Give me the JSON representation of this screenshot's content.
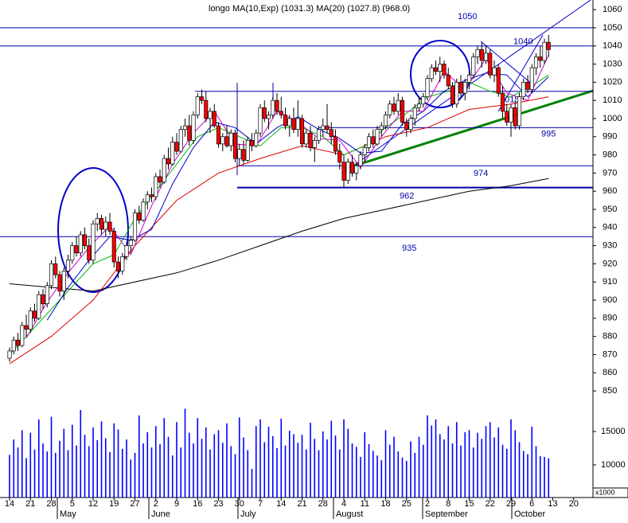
{
  "chart_data": {
    "type": "candlestick",
    "title": "longo",
    "subtitle": "MA(10,Exp) (1031.3) MA(20) (1027.8) (968.0)",
    "xlim": [
      -2.29,
      139.62
    ],
    "xticks": [
      {
        "value": 0,
        "label": "14"
      },
      {
        "value": 5,
        "label": "21"
      },
      {
        "value": 10,
        "label": "28"
      },
      {
        "value": 15,
        "label": "5"
      },
      {
        "value": 20,
        "label": "12"
      },
      {
        "value": 25,
        "label": "19"
      },
      {
        "value": 30,
        "label": "27"
      },
      {
        "value": 35,
        "label": "2"
      },
      {
        "value": 40,
        "label": "9"
      },
      {
        "value": 45,
        "label": "16"
      },
      {
        "value": 50,
        "label": "23"
      },
      {
        "value": 55,
        "label": "30"
      },
      {
        "value": 60,
        "label": "7"
      },
      {
        "value": 65,
        "label": "14"
      },
      {
        "value": 70,
        "label": "21"
      },
      {
        "value": 75,
        "label": "28"
      },
      {
        "value": 80,
        "label": "4"
      },
      {
        "value": 85,
        "label": "11"
      },
      {
        "value": 90,
        "label": "18"
      },
      {
        "value": 95,
        "label": "25"
      },
      {
        "value": 100,
        "label": "2"
      },
      {
        "value": 105,
        "label": "8"
      },
      {
        "value": 110,
        "label": "15"
      },
      {
        "value": 115,
        "label": "22"
      },
      {
        "value": 120,
        "label": "29"
      },
      {
        "value": 125,
        "label": "6"
      },
      {
        "value": 130,
        "label": "13"
      },
      {
        "value": 135,
        "label": "20"
      }
    ],
    "months": [
      "May",
      "June",
      "July",
      "August",
      "September",
      "October"
    ],
    "ylim": [
      841.7,
      1065.3
    ],
    "yticks": [
      850,
      860,
      870,
      880,
      890,
      900,
      910,
      920,
      930,
      940,
      950,
      960,
      970,
      980,
      990,
      1000,
      1010,
      1020,
      1030,
      1040,
      1050,
      1060
    ],
    "up_color": "#ffffff",
    "down_color": "#ff0000",
    "ohlc": [
      [
        868,
        874,
        866,
        872
      ],
      [
        872,
        880,
        870,
        878
      ],
      [
        878,
        882,
        872,
        875
      ],
      [
        875,
        888,
        874,
        886
      ],
      [
        886,
        892,
        880,
        884
      ],
      [
        884,
        896,
        882,
        894
      ],
      [
        894,
        898,
        888,
        890
      ],
      [
        890,
        905,
        889,
        903
      ],
      [
        903,
        906,
        895,
        898
      ],
      [
        898,
        910,
        896,
        908
      ],
      [
        908,
        922,
        906,
        920
      ],
      [
        920,
        924,
        912,
        914
      ],
      [
        914,
        916,
        902,
        905
      ],
      [
        905,
        918,
        900,
        916
      ],
      [
        916,
        925,
        912,
        922
      ],
      [
        922,
        932,
        920,
        930
      ],
      [
        930,
        935,
        924,
        926
      ],
      [
        926,
        938,
        924,
        936
      ],
      [
        936,
        940,
        928,
        930
      ],
      [
        930,
        934,
        920,
        922
      ],
      [
        922,
        944,
        920,
        942
      ],
      [
        942,
        948,
        938,
        945
      ],
      [
        945,
        947,
        936,
        939
      ],
      [
        939,
        946,
        935,
        943
      ],
      [
        943,
        948,
        936,
        938
      ],
      [
        938,
        940,
        918,
        921
      ],
      [
        921,
        924,
        912,
        916
      ],
      [
        916,
        926,
        914,
        924
      ],
      [
        924,
        932,
        922,
        930
      ],
      [
        930,
        935,
        926,
        933
      ],
      [
        933,
        950,
        932,
        948
      ],
      [
        948,
        952,
        942,
        944
      ],
      [
        944,
        956,
        943,
        954
      ],
      [
        954,
        960,
        950,
        958
      ],
      [
        958,
        962,
        954,
        957
      ],
      [
        957,
        970,
        955,
        968
      ],
      [
        968,
        972,
        962,
        965
      ],
      [
        965,
        980,
        964,
        978
      ],
      [
        978,
        984,
        972,
        975
      ],
      [
        975,
        990,
        974,
        987
      ],
      [
        987,
        992,
        980,
        982
      ],
      [
        982,
        996,
        981,
        994
      ],
      [
        994,
        1000,
        990,
        996
      ],
      [
        996,
        1002,
        985,
        988
      ],
      [
        988,
        1004,
        986,
        1002
      ],
      [
        1002,
        1014,
        1000,
        1012
      ],
      [
        1012,
        1016,
        1008,
        1010
      ],
      [
        1010,
        1015,
        998,
        1000
      ],
      [
        1000,
        1006,
        992,
        1004
      ],
      [
        1004,
        1008,
        995,
        996
      ],
      [
        996,
        998,
        984,
        986
      ],
      [
        986,
        992,
        982,
        990
      ],
      [
        990,
        996,
        984,
        985
      ],
      [
        985,
        994,
        982,
        992
      ],
      [
        992,
        994,
        976,
        978
      ],
      [
        978,
        986,
        974,
        983
      ],
      [
        983,
        988,
        975,
        977
      ],
      [
        977,
        990,
        976,
        988
      ],
      [
        988,
        992,
        982,
        985
      ],
      [
        985,
        994,
        984,
        992
      ],
      [
        992,
        1008,
        990,
        1006
      ],
      [
        1006,
        1010,
        998,
        1000
      ],
      [
        1000,
        1004,
        994,
        1002
      ],
      [
        1002,
        1012,
        1000,
        1010
      ],
      [
        1010,
        1014,
        1002,
        1004
      ],
      [
        1004,
        1012,
        1000,
        1002
      ],
      [
        1002,
        1006,
        994,
        996
      ],
      [
        996,
        1002,
        990,
        1000
      ],
      [
        1000,
        1006,
        992,
        994
      ],
      [
        994,
        1010,
        990,
        1000
      ],
      [
        1000,
        1002,
        984,
        986
      ],
      [
        986,
        994,
        984,
        992
      ],
      [
        992,
        996,
        982,
        984
      ],
      [
        984,
        990,
        976,
        988
      ],
      [
        988,
        996,
        986,
        994
      ],
      [
        994,
        1000,
        990,
        996
      ],
      [
        996,
        1008,
        992,
        994
      ],
      [
        994,
        998,
        986,
        990
      ],
      [
        990,
        994,
        980,
        982
      ],
      [
        982,
        986,
        972,
        976
      ],
      [
        976,
        980,
        962,
        966
      ],
      [
        966,
        978,
        964,
        976
      ],
      [
        976,
        980,
        968,
        970
      ],
      [
        970,
        976,
        966,
        974
      ],
      [
        974,
        982,
        972,
        980
      ],
      [
        980,
        986,
        976,
        984
      ],
      [
        984,
        992,
        982,
        990
      ],
      [
        990,
        994,
        984,
        986
      ],
      [
        986,
        996,
        985,
        994
      ],
      [
        994,
        998,
        990,
        996
      ],
      [
        996,
        1004,
        994,
        1002
      ],
      [
        1002,
        1010,
        1000,
        1008
      ],
      [
        1008,
        1012,
        1002,
        1004
      ],
      [
        1004,
        1014,
        1002,
        1010
      ],
      [
        1010,
        1012,
        996,
        998
      ],
      [
        998,
        1000,
        990,
        994
      ],
      [
        994,
        1002,
        992,
        1000
      ],
      [
        1000,
        1008,
        996,
        1006
      ],
      [
        1006,
        1012,
        1004,
        1008
      ],
      [
        1008,
        1014,
        1006,
        1012
      ],
      [
        1012,
        1024,
        1010,
        1022
      ],
      [
        1022,
        1030,
        1020,
        1028
      ],
      [
        1028,
        1032,
        1024,
        1026
      ],
      [
        1026,
        1034,
        1020,
        1030
      ],
      [
        1030,
        1032,
        1022,
        1024
      ],
      [
        1024,
        1028,
        1016,
        1018
      ],
      [
        1018,
        1020,
        1006,
        1008
      ],
      [
        1008,
        1022,
        1006,
        1020
      ],
      [
        1020,
        1024,
        1012,
        1014
      ],
      [
        1014,
        1022,
        1010,
        1020
      ],
      [
        1020,
        1026,
        1016,
        1024
      ],
      [
        1024,
        1036,
        1022,
        1034
      ],
      [
        1034,
        1040,
        1030,
        1038
      ],
      [
        1038,
        1042,
        1028,
        1032
      ],
      [
        1032,
        1040,
        1030,
        1036
      ],
      [
        1036,
        1038,
        1022,
        1024
      ],
      [
        1024,
        1032,
        1020,
        1028
      ],
      [
        1028,
        1030,
        1012,
        1014
      ],
      [
        1014,
        1018,
        1000,
        1004
      ],
      [
        1004,
        1008,
        996,
        998
      ],
      [
        998,
        1008,
        990,
        1006
      ],
      [
        1006,
        1010,
        994,
        996
      ],
      [
        996,
        1014,
        994,
        1012
      ],
      [
        1012,
        1022,
        1010,
        1020
      ],
      [
        1020,
        1024,
        1014,
        1016
      ],
      [
        1016,
        1030,
        1014,
        1028
      ],
      [
        1028,
        1036,
        1024,
        1034
      ],
      [
        1034,
        1040,
        1028,
        1032
      ],
      [
        1032,
        1044,
        1030,
        1042
      ],
      [
        1042,
        1046,
        1034,
        1038
      ],
      null,
      null,
      null,
      null,
      null,
      null,
      null,
      null,
      null,
      null
    ],
    "levels": [
      1050,
      1040,
      1015,
      995,
      974,
      962,
      935
    ],
    "level_color": "#0000aa",
    "ma": [
      {
        "color": "#000000",
        "x": [
          0,
          20,
          40,
          50,
          60,
          70,
          80,
          90,
          100,
          110,
          120,
          129
        ],
        "values": [
          909,
          905,
          915,
          922,
          930,
          938,
          945,
          950,
          955,
          960,
          963,
          967
        ]
      },
      {
        "color": "#dd0000",
        "x": [
          0,
          10,
          20,
          30,
          40,
          50,
          60,
          70,
          80,
          90,
          100,
          110,
          120,
          129
        ],
        "values": [
          865,
          880,
          900,
          930,
          955,
          970,
          978,
          985,
          980,
          990,
          995,
          1005,
          1008,
          1012
        ]
      },
      {
        "color": "#00bb00",
        "x": [
          0,
          10,
          20,
          25,
          30,
          40,
          45,
          50,
          55,
          60,
          65,
          70,
          75,
          80,
          85,
          90,
          95,
          100,
          105,
          110,
          115,
          120,
          125,
          129
        ],
        "values": [
          870,
          895,
          920,
          925,
          945,
          975,
          990,
          995,
          990,
          985,
          995,
          995,
          990,
          980,
          985,
          995,
          1003,
          1012,
          1015,
          1020,
          1015,
          1012,
          1018,
          1024
        ]
      },
      {
        "color": "#0000cc",
        "x": [
          9,
          14,
          19,
          24,
          29,
          34,
          39,
          44,
          49,
          54,
          59,
          64,
          69,
          74,
          79,
          84,
          89,
          94,
          99,
          104,
          109,
          114,
          119,
          124,
          129
        ],
        "values": [
          889,
          907,
          922,
          935,
          933,
          939,
          964,
          984,
          998,
          995,
          986,
          995,
          1001,
          994,
          989,
          981,
          982,
          997,
          1004,
          1015,
          1021,
          1025,
          1024,
          1012,
          1023
        ]
      },
      {
        "color": "#cc00cc",
        "x": [
          4,
          9,
          14,
          19,
          24,
          29,
          34,
          39,
          44,
          49,
          54,
          59,
          64,
          69,
          74,
          79,
          84,
          89,
          94,
          99,
          104,
          109,
          114,
          119,
          124,
          129
        ],
        "values": [
          879,
          899,
          915,
          929,
          941,
          925,
          952,
          975,
          992,
          1004,
          986,
          985,
          1004,
          998,
          989,
          988,
          973,
          990,
          1004,
          1004,
          1026,
          1016,
          1033,
          1014,
          1010,
          1035
        ]
      }
    ],
    "volume": {
      "color": "#0000ff",
      "ylim": [
        5119,
        18810
      ],
      "yticks": [
        15000,
        10000
      ],
      "unit_label": "x1000",
      "values": [
        11500,
        13800,
        12600,
        15200,
        11000,
        14800,
        12300,
        16800,
        13200,
        12000,
        17200,
        11800,
        13600,
        15400,
        12200,
        16000,
        12900,
        18200,
        14500,
        12800,
        15600,
        13700,
        16500,
        14000,
        11900,
        16200,
        15300,
        12400,
        13800,
        10800,
        11800,
        17400,
        13200,
        14900,
        12600,
        15800,
        13100,
        17000,
        14200,
        11400,
        16400,
        12600,
        18400,
        14800,
        13200,
        17000,
        13900,
        15600,
        12300,
        14600,
        15200,
        13300,
        16200,
        12800,
        11600,
        17100,
        14100,
        12200,
        9400,
        15800,
        16800,
        13400,
        15700,
        14300,
        12500,
        16900,
        12900,
        15100,
        14600,
        13300,
        14500,
        12300,
        16300,
        13900,
        12200,
        15000,
        13800,
        16600,
        14400,
        12300,
        16800,
        15400,
        13200,
        12700,
        11200,
        14900,
        13100,
        12100,
        11400,
        10700,
        15200,
        13000,
        14200,
        12000,
        11100,
        10600,
        13500,
        11800,
        14200,
        13000,
        17400,
        15900,
        16800,
        14600,
        13800,
        15800,
        13200,
        16400,
        12900,
        14900,
        15200,
        12600,
        14800,
        13900,
        15800,
        16400,
        14100,
        15600,
        13000,
        12400,
        16800,
        15200,
        13400,
        12100,
        11600,
        15700,
        12800,
        11300,
        11200,
        11000
      ]
    }
  }
}
